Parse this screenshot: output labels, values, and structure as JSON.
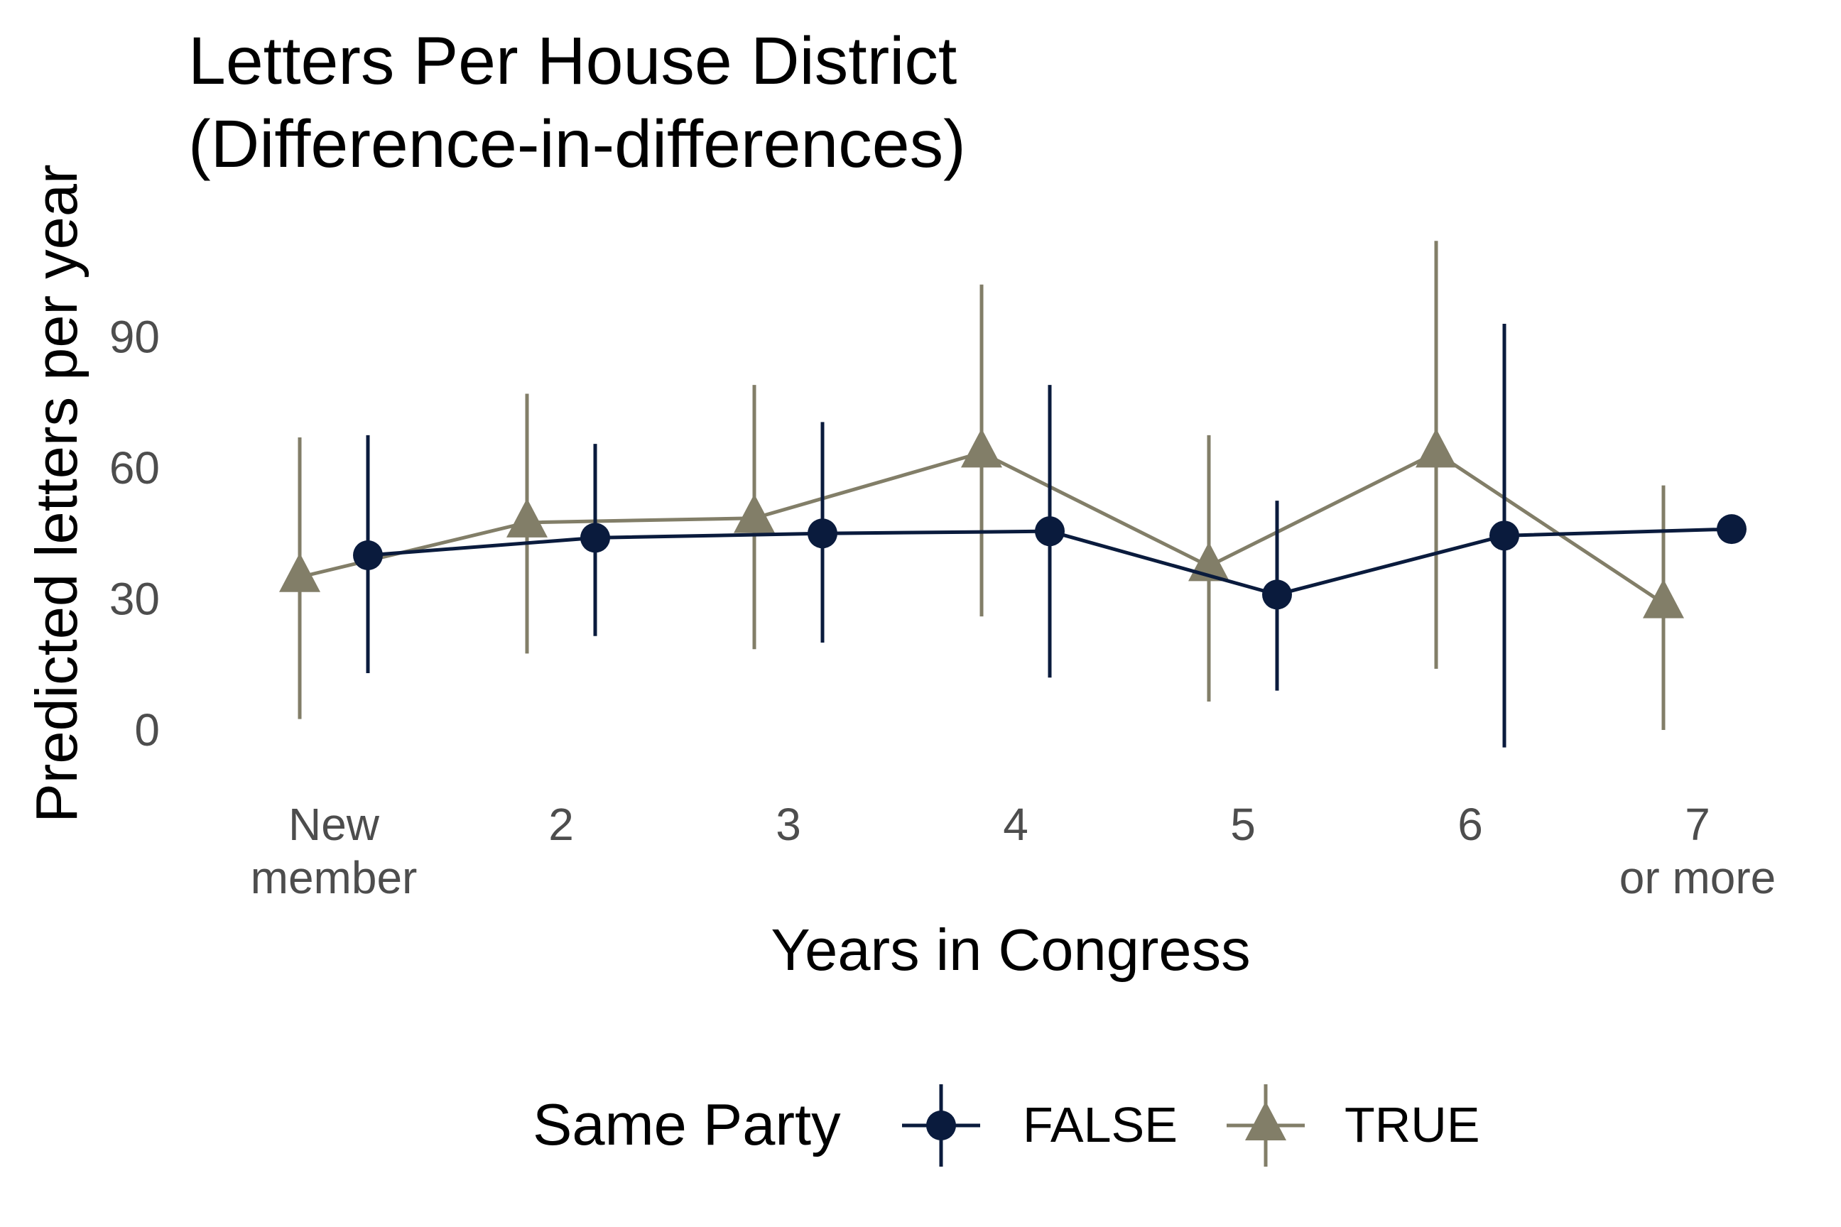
{
  "chart_data": {
    "type": "line",
    "title": [
      "Letters Per House District",
      "(Difference-in-differences)"
    ],
    "xlabel": "Years in Congress",
    "ylabel": "Predicted letters per year",
    "categories": [
      [
        "New",
        "member"
      ],
      [
        "2"
      ],
      [
        "3"
      ],
      [
        "4"
      ],
      [
        "5"
      ],
      [
        "6"
      ],
      [
        "7",
        "or more"
      ]
    ],
    "yticks": [
      0,
      30,
      60,
      90
    ],
    "ylim": [
      -8,
      115
    ],
    "grid": false,
    "legend": {
      "title": "Same Party",
      "position": "bottom"
    },
    "error_bars": true,
    "series": [
      {
        "name": "FALSE",
        "color": "#0a1b3d",
        "marker": "circle",
        "dodge": 0.15,
        "values": [
          40,
          44,
          45,
          45.5,
          31,
          44.5,
          46
        ],
        "lower": [
          13,
          21.5,
          20,
          12,
          9,
          -4,
          null
        ],
        "upper": [
          67.5,
          65.5,
          70.5,
          79,
          52.5,
          93,
          null
        ]
      },
      {
        "name": "TRUE",
        "color": "#827e68",
        "marker": "triangle",
        "dodge": -0.15,
        "values": [
          35,
          47.5,
          48.5,
          63.5,
          37.5,
          63.5,
          29
        ],
        "lower": [
          2.5,
          17.5,
          18.5,
          26,
          6.5,
          14,
          0
        ],
        "upper": [
          67,
          77,
          79,
          102,
          67.5,
          112,
          56
        ]
      }
    ]
  }
}
